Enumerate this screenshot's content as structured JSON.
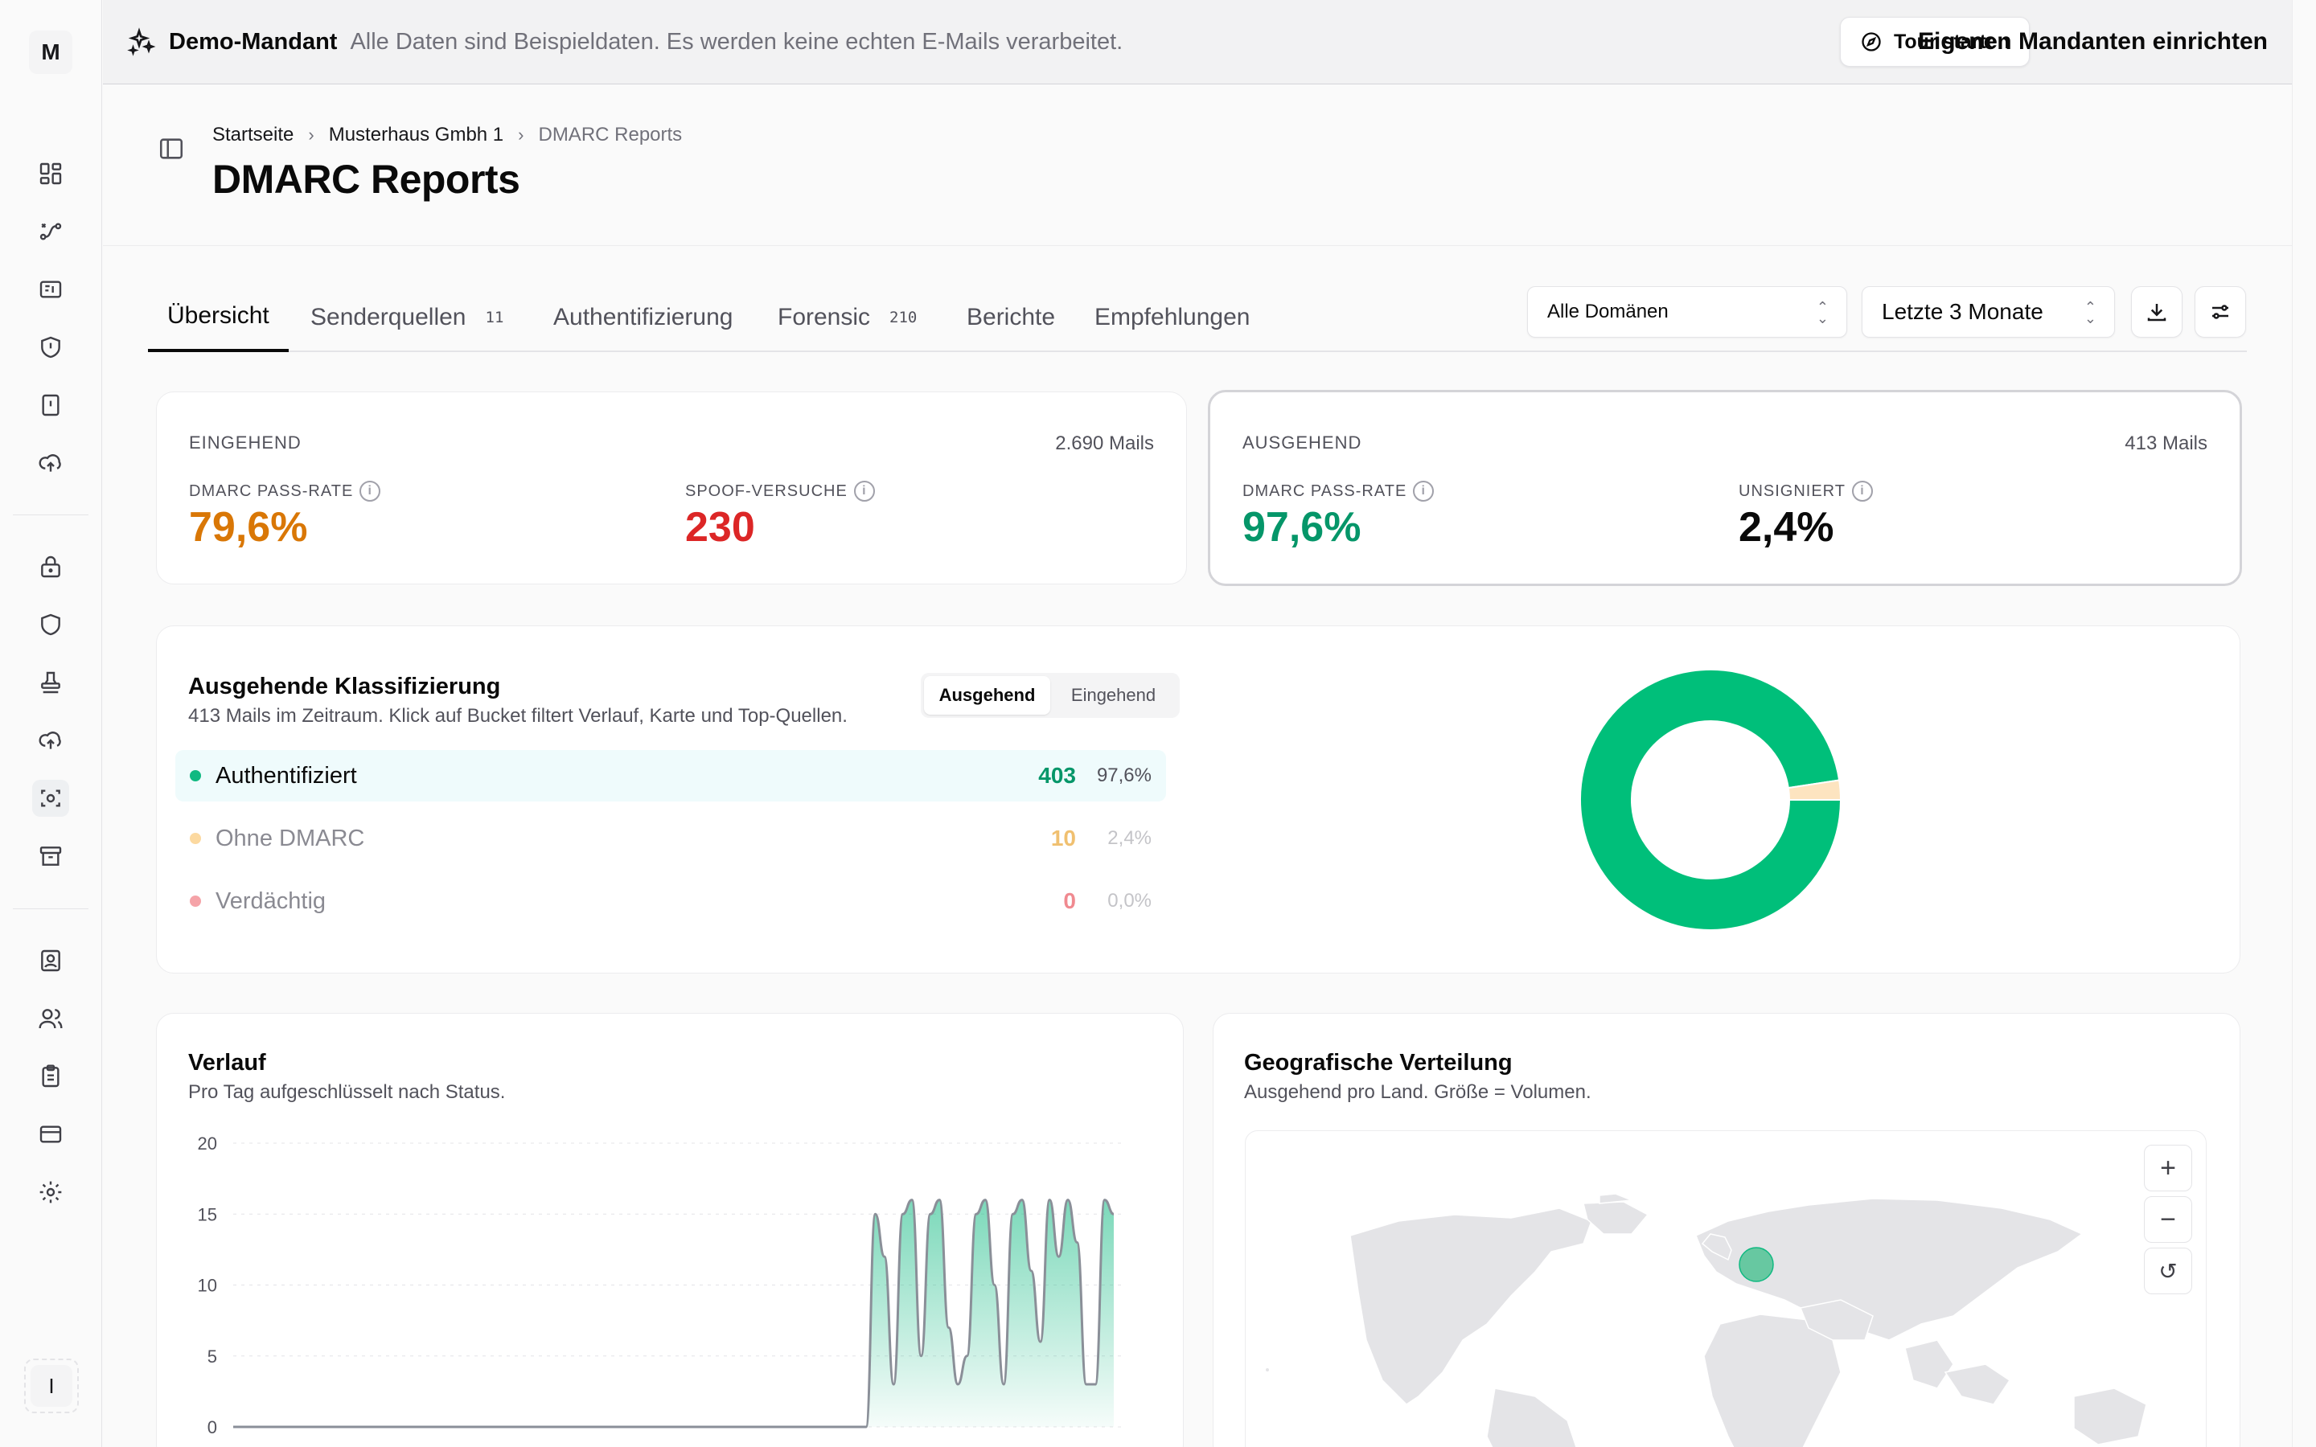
{
  "sidebar": {
    "avatar_letter": "M",
    "bottom_letter": "I"
  },
  "banner": {
    "title": "Demo-Mandant",
    "text": "Alle Daten sind Beispieldaten. Es werden keine echten E-Mails verarbeitet.",
    "tour_button": "Tour starten",
    "setup_link": "Eigenen Mandanten einrichten"
  },
  "breadcrumb": {
    "home": "Startseite",
    "tenant": "Musterhaus Gmbh 1",
    "current": "DMARC Reports"
  },
  "page_title": "DMARC Reports",
  "tabs": [
    {
      "label": "Übersicht",
      "badge": ""
    },
    {
      "label": "Senderquellen",
      "badge": "11"
    },
    {
      "label": "Authentifizierung",
      "badge": ""
    },
    {
      "label": "Forensic",
      "badge": "210"
    },
    {
      "label": "Berichte",
      "badge": ""
    },
    {
      "label": "Empfehlungen",
      "badge": ""
    }
  ],
  "filters": {
    "domain": "Alle Domänen",
    "period": "Letzte 3 Monate"
  },
  "inbound": {
    "heading": "EINGEHEND",
    "mails": "2.690 Mails",
    "pass_label": "DMARC PASS-RATE",
    "pass_value": "79,6%",
    "spoof_label": "SPOOF-VERSUCHE",
    "spoof_value": "230"
  },
  "outbound": {
    "heading": "AUSGEHEND",
    "mails": "413 Mails",
    "pass_label": "DMARC PASS-RATE",
    "pass_value": "97,6%",
    "unsigned_label": "UNSIGNIERT",
    "unsigned_value": "2,4%"
  },
  "classification": {
    "title": "Ausgehende Klassifizierung",
    "subtitle": "413 Mails im Zeitraum. Klick auf Bucket filtert Verlauf, Karte und Top-Quellen.",
    "toggle": [
      "Ausgehend",
      "Eingehend"
    ],
    "buckets": [
      {
        "label": "Authentifiziert",
        "count": "403",
        "pct": "97,6%",
        "color": "#10b981"
      },
      {
        "label": "Ohne DMARC",
        "count": "10",
        "pct": "2,4%",
        "color": "#fcd9a0"
      },
      {
        "label": "Verdächtig",
        "count": "0",
        "pct": "0,0%",
        "color": "#f5a3a8"
      }
    ],
    "donut_values": [
      403,
      10,
      0
    ],
    "donut_colors": [
      "#00bf7a",
      "#fde4c0",
      "#f5a3a8"
    ]
  },
  "trend": {
    "title": "Verlauf",
    "subtitle": "Pro Tag aufgeschlüsselt nach Status.",
    "y_ticks": [
      "20",
      "15",
      "10",
      "5",
      "0"
    ]
  },
  "geo": {
    "title": "Geografische Verteilung",
    "subtitle": "Ausgehend pro Land. Größe = Volumen.",
    "controls": [
      "+",
      "−",
      "↺"
    ]
  },
  "chart_data": {
    "type": "area",
    "title": "Verlauf",
    "ylim": [
      0,
      20
    ],
    "y_ticks": [
      0,
      5,
      10,
      15,
      20
    ],
    "series": [
      {
        "values": [
          0,
          0,
          0,
          0,
          0,
          0,
          0,
          0,
          0,
          0,
          0,
          0,
          0,
          0,
          0,
          0,
          0,
          0,
          0,
          0,
          0,
          0,
          0,
          0,
          0,
          0,
          0,
          0,
          0,
          0,
          0,
          0,
          0,
          0,
          0,
          0,
          0,
          0,
          0,
          0,
          0,
          0,
          0,
          0,
          0,
          0,
          0,
          0,
          0,
          0,
          0,
          0,
          0,
          0,
          0,
          0,
          0,
          0,
          0,
          0,
          0,
          0,
          0,
          0,
          0,
          0,
          0,
          0,
          0,
          0,
          15,
          12,
          3,
          15,
          16,
          5,
          15,
          16,
          7,
          3,
          5,
          15,
          16,
          10,
          3,
          15,
          16,
          11,
          6,
          16,
          12,
          16,
          13,
          3,
          3,
          16,
          15
        ]
      }
    ]
  }
}
